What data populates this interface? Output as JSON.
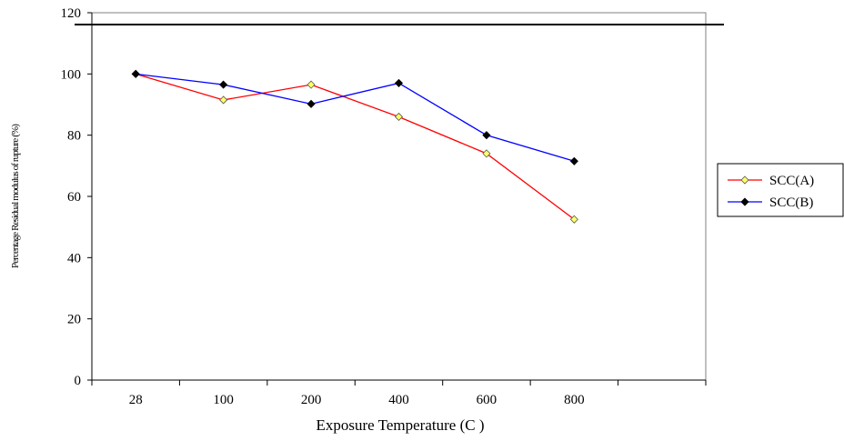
{
  "chart_data": {
    "type": "line",
    "title": "",
    "xlabel": "Exposure Temperature (C   )",
    "ylabel": "Percentage Residual modulus of rupture (%)",
    "categories": [
      "28",
      "100",
      "200",
      "400",
      "600",
      "800"
    ],
    "ylim": [
      0,
      120
    ],
    "yticks": [
      "0",
      "20",
      "40",
      "60",
      "80",
      "100",
      "120"
    ],
    "grid": false,
    "legend_position": "right",
    "series": [
      {
        "name": "SCC(A)",
        "values": [
          100,
          91.5,
          96.5,
          86,
          74,
          52.5
        ],
        "color": "#ff0000",
        "marker": "diamond",
        "marker_fill": "#ffff66"
      },
      {
        "name": "SCC(B)",
        "values": [
          100,
          96.5,
          90.2,
          97,
          80,
          71.5
        ],
        "color": "#0000ff",
        "marker": "diamond",
        "marker_fill": "#000000"
      }
    ]
  }
}
